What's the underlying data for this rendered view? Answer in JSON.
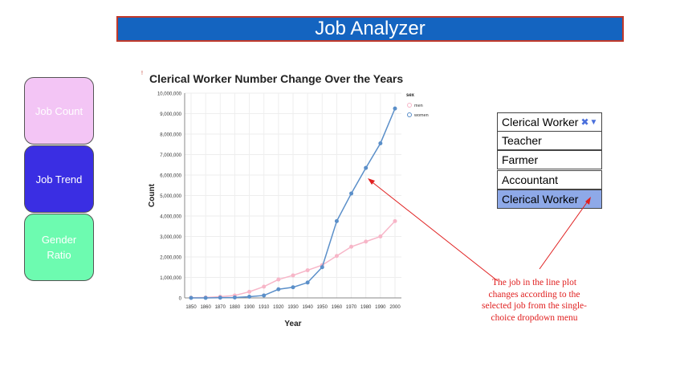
{
  "app": {
    "title": "Job Analyzer"
  },
  "sidebar": {
    "items": [
      {
        "label": "Job Count",
        "color": "#f3c5f5"
      },
      {
        "label": "Job Trend",
        "color": "#3a2ee3"
      },
      {
        "label": "Gender Ratio",
        "color": "#6dfbb0"
      }
    ]
  },
  "dropdown": {
    "selected": "Clerical Worker",
    "clear_icon": "✖",
    "arrow_icon": "▼",
    "options": [
      "Teacher",
      "Farmer",
      "Accountant",
      "Clerical Worker"
    ],
    "highlighted_color": "#8ea9e8"
  },
  "annotation": {
    "text": "The job in the line plot changes according to the selected job from the single-choice dropdown menu",
    "color": "#e02020"
  },
  "chart_marker": "!",
  "chart_data": {
    "type": "line",
    "title": "Clerical Worker Number Change Over the Years",
    "xlabel": "Year",
    "ylabel": "Count",
    "legend_title": "sex",
    "legend_position": "top-right",
    "grid": true,
    "x": [
      1850,
      1860,
      1870,
      1880,
      1900,
      1910,
      1920,
      1930,
      1940,
      1950,
      1960,
      1970,
      1980,
      1990,
      2000
    ],
    "ylim": [
      0,
      10000000
    ],
    "yticks": [
      "0",
      "1,000,000",
      "2,000,000",
      "3,000,000",
      "4,000,000",
      "5,000,000",
      "6,000,000",
      "7,000,000",
      "8,000,000",
      "9,000,000",
      "10,000,000"
    ],
    "series": [
      {
        "name": "men",
        "color": "#f7b6c8",
        "values": [
          10000,
          20000,
          60000,
          120000,
          300000,
          550000,
          900000,
          1100000,
          1350000,
          1600000,
          2050000,
          2500000,
          2750000,
          3000000,
          3750000
        ]
      },
      {
        "name": "women",
        "color": "#5b8fc9",
        "values": [
          0,
          0,
          10000,
          20000,
          60000,
          120000,
          420000,
          520000,
          750000,
          1500000,
          3750000,
          5100000,
          6350000,
          7550000,
          9250000
        ]
      }
    ]
  }
}
